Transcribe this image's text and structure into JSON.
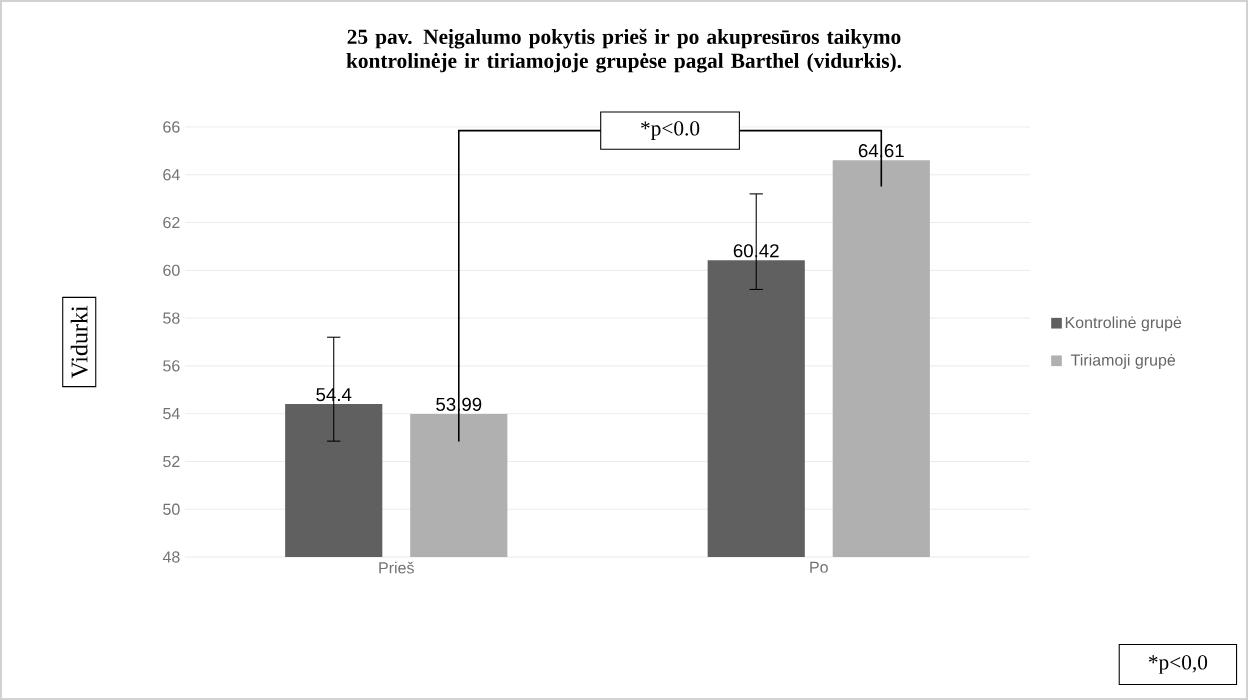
{
  "chart_data": {
    "type": "bar",
    "title": "25 pav. Neįgalumo pokytis prieš ir po akupresūros taikymo kontrolinėje ir tiriamojoje  grupėse pagal Barthel (vidurkis).",
    "ylabel": "Vidurki",
    "categories": [
      "Prieš",
      "Po"
    ],
    "series": [
      {
        "name": "Kontrolinė grupė",
        "color": "#606060",
        "values": [
          54.4,
          60.42
        ],
        "errors": [
          [
            52.85,
            57.2
          ],
          [
            59.2,
            63.2
          ]
        ]
      },
      {
        "name": "Tiriamoji grupė",
        "color": "#b0b0b0",
        "values": [
          53.99,
          64.61
        ]
      }
    ],
    "ylim": [
      48,
      66
    ],
    "yticks": [
      48,
      50,
      52,
      54,
      56,
      58,
      60,
      62,
      64,
      66
    ],
    "grid": "y",
    "legend": "right",
    "data_labels": true,
    "annotations": [
      "*p<0.0",
      "*p<0,0"
    ]
  }
}
